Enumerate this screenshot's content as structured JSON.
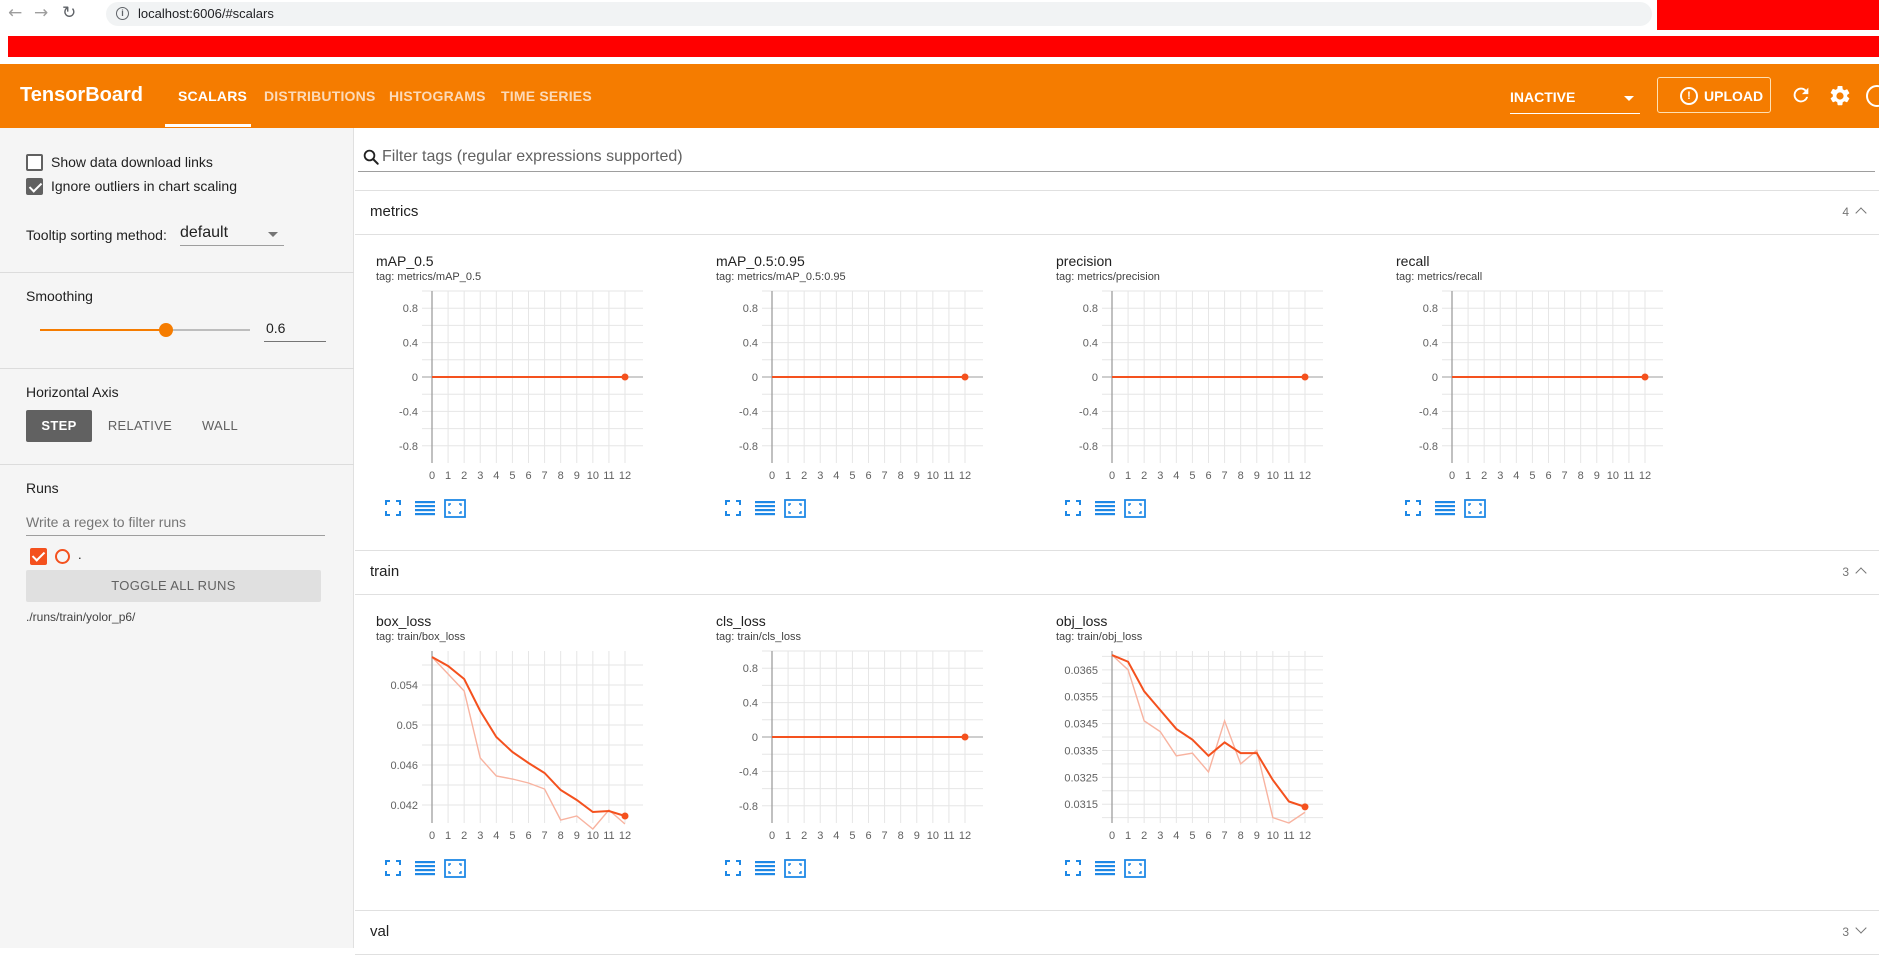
{
  "browser": {
    "url": "localhost:6006/#scalars",
    "info_glyph": "i",
    "back_glyph": "←",
    "forward_glyph": "→",
    "reload_glyph": "↻",
    "star_glyph": "☆"
  },
  "header": {
    "brand": "TensorBoard",
    "tabs": [
      {
        "label": "SCALARS",
        "active": true
      },
      {
        "label": "DISTRIBUTIONS",
        "active": false
      },
      {
        "label": "HISTOGRAMS",
        "active": false
      },
      {
        "label": "TIME SERIES",
        "active": false
      }
    ],
    "status_select": "INACTIVE",
    "upload_label": "UPLOAD",
    "upload_glyph": "!",
    "icons": [
      "info-icon",
      "reload-icon",
      "gear-icon",
      "help-icon"
    ],
    "bar_color": "#f57c00"
  },
  "sidebar": {
    "show_download_links": {
      "label": "Show data download links",
      "checked": false
    },
    "ignore_outliers": {
      "label": "Ignore outliers in chart scaling",
      "checked": true
    },
    "tooltip_sorting": {
      "label": "Tooltip sorting method:",
      "value": "default"
    },
    "smoothing": {
      "label": "Smoothing",
      "value": "0.6",
      "fraction": 0.6
    },
    "horizontal_axis": {
      "label": "Horizontal Axis",
      "options": [
        "STEP",
        "RELATIVE",
        "WALL"
      ],
      "selected": "STEP"
    },
    "runs": {
      "label": "Runs",
      "filter_placeholder": "Write a regex to filter runs",
      "items": [
        {
          "name": ".",
          "checked": true,
          "color": "#f4511e"
        }
      ],
      "toggle_all_label": "TOGGLE ALL RUNS",
      "path": "./runs/train/yolor_p6/"
    }
  },
  "main": {
    "filter_placeholder": "Filter tags (regular expressions supported)",
    "groups": [
      {
        "name": "metrics",
        "count": "4",
        "expanded": true
      },
      {
        "name": "train",
        "count": "3",
        "expanded": true
      },
      {
        "name": "val",
        "count": "3",
        "expanded": false
      }
    ]
  },
  "chart_colors": {
    "smoothed": "#f4511e",
    "raw": "#f8b3a0"
  },
  "chart_data": [
    {
      "type": "line",
      "group": "metrics",
      "title": "mAP_0.5",
      "tag": "tag: metrics/mAP_0.5",
      "x": [
        0,
        1,
        2,
        3,
        4,
        5,
        6,
        7,
        8,
        9,
        10,
        11,
        12
      ],
      "xticks": [
        "0",
        "1",
        "2",
        "3",
        "4",
        "5",
        "6",
        "7",
        "8",
        "9",
        "10",
        "11",
        "12"
      ],
      "yticks": [
        "0.8",
        "0.4",
        "0",
        "-0.4",
        "-0.8"
      ],
      "ytick_values": [
        0.8,
        0.4,
        0,
        -0.4,
        -0.8
      ],
      "ylim": [
        -1,
        1
      ],
      "series": [
        {
          "values": [
            0,
            0,
            0,
            0,
            0,
            0,
            0,
            0,
            0,
            0,
            0,
            0,
            0
          ]
        }
      ],
      "raw": [
        0,
        0,
        0,
        0,
        0,
        0,
        0,
        0,
        0,
        0,
        0,
        0,
        0
      ]
    },
    {
      "type": "line",
      "group": "metrics",
      "title": "mAP_0.5:0.95",
      "tag": "tag: metrics/mAP_0.5:0.95",
      "x": [
        0,
        1,
        2,
        3,
        4,
        5,
        6,
        7,
        8,
        9,
        10,
        11,
        12
      ],
      "xticks": [
        "0",
        "1",
        "2",
        "3",
        "4",
        "5",
        "6",
        "7",
        "8",
        "9",
        "10",
        "11",
        "12"
      ],
      "yticks": [
        "0.8",
        "0.4",
        "0",
        "-0.4",
        "-0.8"
      ],
      "ytick_values": [
        0.8,
        0.4,
        0,
        -0.4,
        -0.8
      ],
      "ylim": [
        -1,
        1
      ],
      "series": [
        {
          "values": [
            0,
            0,
            0,
            0,
            0,
            0,
            0,
            0,
            0,
            0,
            0,
            0,
            0
          ]
        }
      ],
      "raw": [
        0,
        0,
        0,
        0,
        0,
        0,
        0,
        0,
        0,
        0,
        0,
        0,
        0
      ]
    },
    {
      "type": "line",
      "group": "metrics",
      "title": "precision",
      "tag": "tag: metrics/precision",
      "x": [
        0,
        1,
        2,
        3,
        4,
        5,
        6,
        7,
        8,
        9,
        10,
        11,
        12
      ],
      "xticks": [
        "0",
        "1",
        "2",
        "3",
        "4",
        "5",
        "6",
        "7",
        "8",
        "9",
        "10",
        "11",
        "12"
      ],
      "yticks": [
        "0.8",
        "0.4",
        "0",
        "-0.4",
        "-0.8"
      ],
      "ytick_values": [
        0.8,
        0.4,
        0,
        -0.4,
        -0.8
      ],
      "ylim": [
        -1,
        1
      ],
      "series": [
        {
          "values": [
            0,
            0,
            0,
            0,
            0,
            0,
            0,
            0,
            0,
            0,
            0,
            0,
            0
          ]
        }
      ],
      "raw": [
        0,
        0,
        0,
        0,
        0,
        0,
        0,
        0,
        0,
        0,
        0,
        0,
        0
      ]
    },
    {
      "type": "line",
      "group": "metrics",
      "title": "recall",
      "tag": "tag: metrics/recall",
      "x": [
        0,
        1,
        2,
        3,
        4,
        5,
        6,
        7,
        8,
        9,
        10,
        11,
        12
      ],
      "xticks": [
        "0",
        "1",
        "2",
        "3",
        "4",
        "5",
        "6",
        "7",
        "8",
        "9",
        "10",
        "11",
        "12"
      ],
      "yticks": [
        "0.8",
        "0.4",
        "0",
        "-0.4",
        "-0.8"
      ],
      "ytick_values": [
        0.8,
        0.4,
        0,
        -0.4,
        -0.8
      ],
      "ylim": [
        -1,
        1
      ],
      "series": [
        {
          "values": [
            0,
            0,
            0,
            0,
            0,
            0,
            0,
            0,
            0,
            0,
            0,
            0,
            0
          ]
        }
      ],
      "raw": [
        0,
        0,
        0,
        0,
        0,
        0,
        0,
        0,
        0,
        0,
        0,
        0,
        0
      ]
    },
    {
      "type": "line",
      "group": "train",
      "title": "box_loss",
      "tag": "tag: train/box_loss",
      "x": [
        0,
        1,
        2,
        3,
        4,
        5,
        6,
        7,
        8,
        9,
        10,
        11,
        12
      ],
      "xticks": [
        "0",
        "1",
        "2",
        "3",
        "4",
        "5",
        "6",
        "7",
        "8",
        "9",
        "10",
        "11",
        "12"
      ],
      "yticks": [
        "0.054",
        "0.05",
        "0.046",
        "0.042"
      ],
      "ytick_values": [
        0.054,
        0.05,
        0.046,
        0.042
      ],
      "ylim": [
        0.0402,
        0.0574
      ],
      "series": [
        {
          "values": [
            0.0568,
            0.0559,
            0.0546,
            0.0514,
            0.0488,
            0.0473,
            0.0462,
            0.0452,
            0.0435,
            0.0425,
            0.0413,
            0.0414,
            0.0409
          ]
        }
      ],
      "raw": [
        0.0568,
        0.0551,
        0.0534,
        0.0467,
        0.0449,
        0.0446,
        0.0442,
        0.0436,
        0.0405,
        0.0409,
        0.0396,
        0.0415,
        0.0401
      ]
    },
    {
      "type": "line",
      "group": "train",
      "title": "cls_loss",
      "tag": "tag: train/cls_loss",
      "x": [
        0,
        1,
        2,
        3,
        4,
        5,
        6,
        7,
        8,
        9,
        10,
        11,
        12
      ],
      "xticks": [
        "0",
        "1",
        "2",
        "3",
        "4",
        "5",
        "6",
        "7",
        "8",
        "9",
        "10",
        "11",
        "12"
      ],
      "yticks": [
        "0.8",
        "0.4",
        "0",
        "-0.4",
        "-0.8"
      ],
      "ytick_values": [
        0.8,
        0.4,
        0,
        -0.4,
        -0.8
      ],
      "ylim": [
        -1,
        1
      ],
      "series": [
        {
          "values": [
            0,
            0,
            0,
            0,
            0,
            0,
            0,
            0,
            0,
            0,
            0,
            0,
            0
          ]
        }
      ],
      "raw": [
        0,
        0,
        0,
        0,
        0,
        0,
        0,
        0,
        0,
        0,
        0,
        0,
        0
      ]
    },
    {
      "type": "line",
      "group": "train",
      "title": "obj_loss",
      "tag": "tag: train/obj_loss",
      "x": [
        0,
        1,
        2,
        3,
        4,
        5,
        6,
        7,
        8,
        9,
        10,
        11,
        12
      ],
      "xticks": [
        "0",
        "1",
        "2",
        "3",
        "4",
        "5",
        "6",
        "7",
        "8",
        "9",
        "10",
        "11",
        "12"
      ],
      "yticks": [
        "0.0365",
        "0.0355",
        "0.0345",
        "0.0335",
        "0.0325",
        "0.0315"
      ],
      "ytick_values": [
        0.0365,
        0.0355,
        0.0345,
        0.0335,
        0.0325,
        0.0315
      ],
      "ylim": [
        0.0308,
        0.0372
      ],
      "series": [
        {
          "values": [
            0.03705,
            0.0368,
            0.0357,
            0.035,
            0.0343,
            0.0339,
            0.0333,
            0.0338,
            0.0334,
            0.0334,
            0.0324,
            0.0316,
            0.0314
          ]
        }
      ],
      "raw": [
        0.03705,
        0.0365,
        0.0346,
        0.0342,
        0.0333,
        0.0334,
        0.0327,
        0.0346,
        0.033,
        0.0335,
        0.031,
        0.0308,
        0.0312
      ]
    }
  ]
}
